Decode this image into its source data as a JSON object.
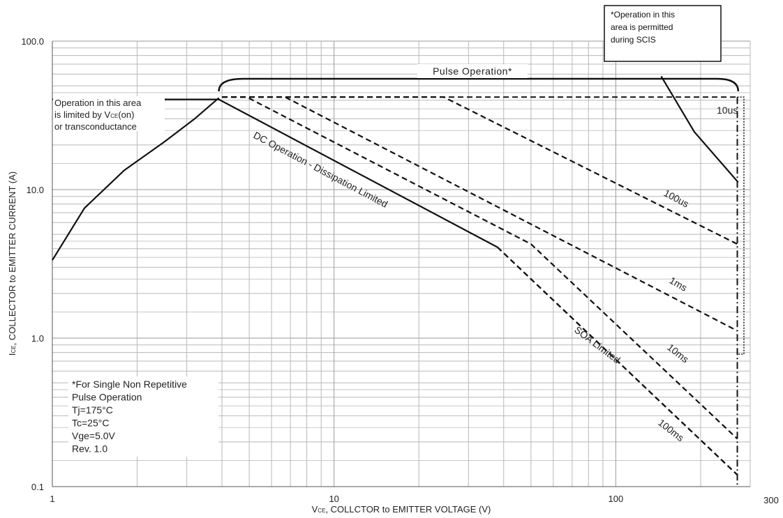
{
  "chart_data": {
    "type": "line",
    "x_scale": "log",
    "y_scale": "log",
    "xlim": [
      1,
      300
    ],
    "ylim": [
      0.1,
      100
    ],
    "grid": true,
    "xlabel_prefix": "V",
    "xlabel_sub": "CE",
    "xlabel_rest": ", COLLCTOR to EMITTER VOLTAGE (V)",
    "ylabel_prefix": "I",
    "ylabel_sub": "CE",
    "ylabel_rest": ", COLLECTOR to EMITTER CURRENT (A)",
    "x_ticks": [
      {
        "value": 1,
        "label": "1"
      },
      {
        "value": 10,
        "label": "10"
      },
      {
        "value": 100,
        "label": "100"
      },
      {
        "value": 300,
        "label": "300"
      }
    ],
    "y_ticks": [
      {
        "value": 100,
        "label": "100.0"
      },
      {
        "value": 10,
        "label": "10.0"
      },
      {
        "value": 1,
        "label": "1.0"
      },
      {
        "value": 0.1,
        "label": "0.1"
      }
    ],
    "series": [
      {
        "name": "Operation in this area is limited by VCE(on) or transconductance",
        "style": "solid",
        "points": [
          [
            1,
            3.35
          ],
          [
            1.3,
            7.5
          ],
          [
            1.8,
            13.5
          ],
          [
            2.5,
            21
          ],
          [
            3.2,
            30
          ],
          [
            3.9,
            41.5
          ]
        ]
      },
      {
        "name": "DC Operation - Dissipation Limited",
        "style": "solid",
        "points": [
          [
            1,
            40.5
          ],
          [
            3.9,
            40.5
          ],
          [
            38,
            4.1
          ]
        ]
      },
      {
        "name": "SOA Limited",
        "style": "dashed",
        "points": [
          [
            38,
            4.1
          ],
          [
            270,
            0.12
          ]
        ]
      },
      {
        "name": "10us",
        "style": "solid",
        "points": [
          [
            145,
            58
          ],
          [
            190,
            24.5
          ],
          [
            272,
            11.2
          ]
        ]
      },
      {
        "name": "100us",
        "style": "dashed",
        "points": [
          [
            4,
            42
          ],
          [
            24.5,
            42
          ],
          [
            270,
            4.3
          ]
        ]
      },
      {
        "name": "1ms",
        "style": "dashed",
        "points": [
          [
            4,
            42
          ],
          [
            6.7,
            42
          ],
          [
            270,
            1.12
          ]
        ]
      },
      {
        "name": "10ms",
        "style": "dashed",
        "points": [
          [
            4,
            42
          ],
          [
            4.9,
            42
          ],
          [
            50,
            4.3
          ],
          [
            270,
            0.21
          ]
        ]
      },
      {
        "name": "100ms",
        "style": "dashed",
        "points": [
          [
            270,
            0.12
          ]
        ]
      }
    ],
    "boundaries": {
      "dash_dot_vertical": [
        [
          270,
          42
        ],
        [
          270,
          0.1
        ]
      ],
      "dashed_top": [
        [
          4,
          42
        ],
        [
          270,
          42
        ]
      ],
      "dotted_box": [
        [
          270,
          42
        ],
        [
          285,
          42
        ],
        [
          285,
          0.78
        ],
        [
          270,
          0.78
        ]
      ]
    },
    "annotations": {
      "pulse_operation": "Pulse Operation*",
      "limited_area": [
        "Operation in this area",
        "is limited by V",
        "CE",
        "(on)",
        "or transconductance"
      ],
      "dc_label": "DC Operation - Dissipation Limited",
      "soa_label": "SOA Limited",
      "label_10us": "10us",
      "label_100us": "100us",
      "label_1ms": "1ms",
      "label_10ms": "10ms",
      "label_100ms": "100ms",
      "scis_note": [
        "*Operation in this",
        "area is permitted",
        "during SCIS"
      ],
      "conditions": [
        "*For Single Non Repetitive",
        "Pulse Operation",
        "Tj=175°C",
        "Tc=25°C",
        "Vge=5.0V",
        "Rev. 1.0"
      ]
    }
  }
}
